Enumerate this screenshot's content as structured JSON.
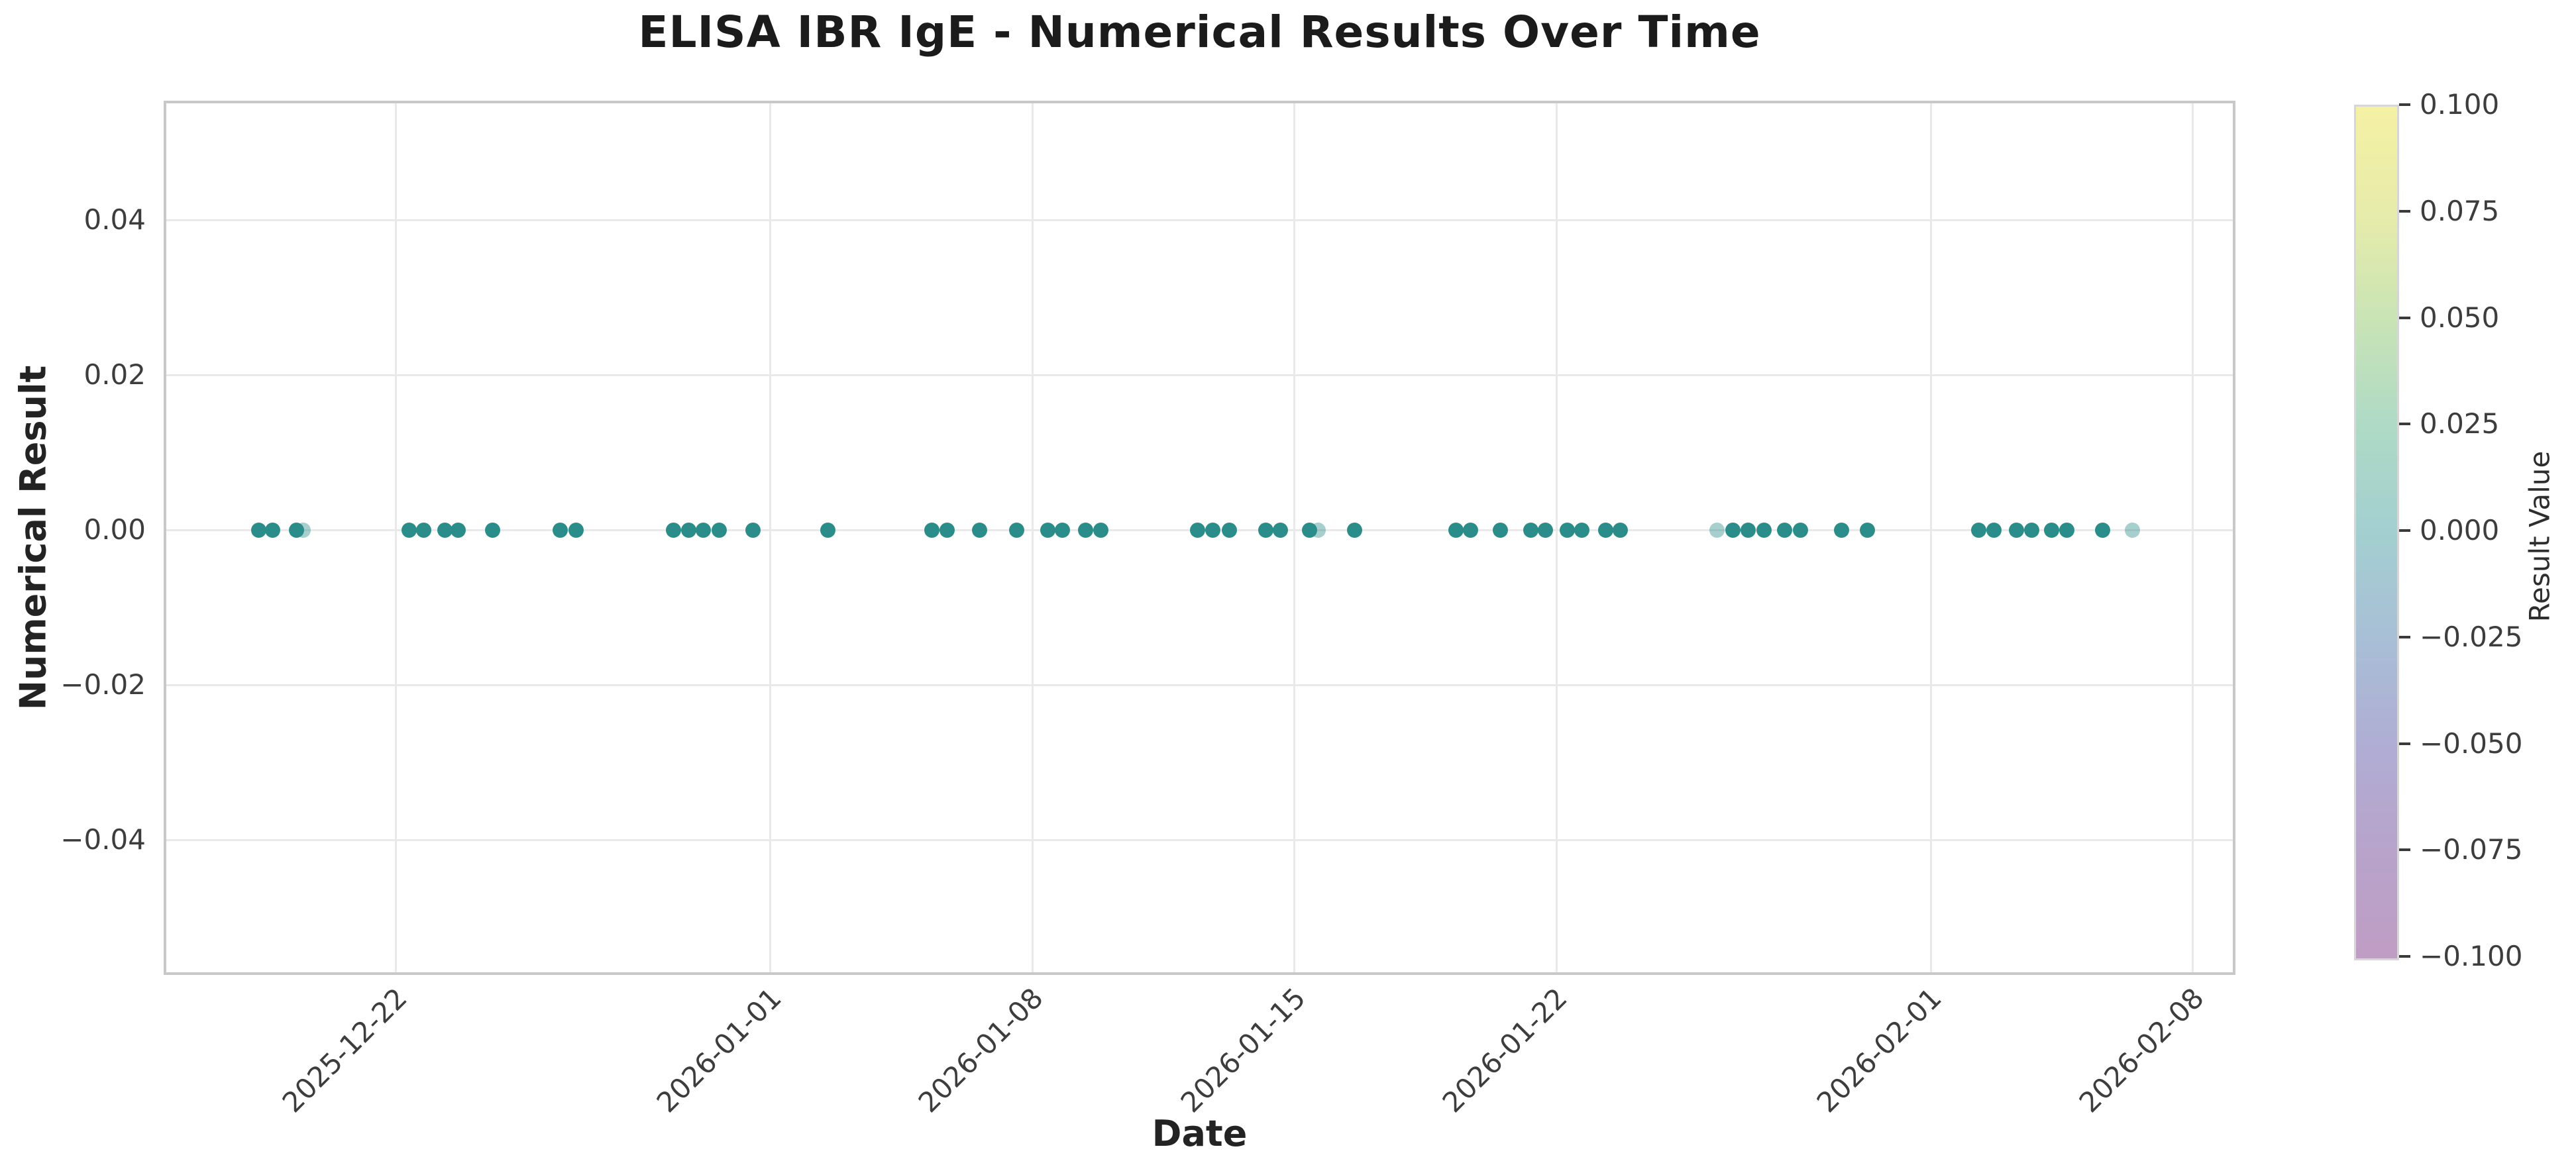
{
  "figure": {
    "background": "#ffffff"
  },
  "chart_data": {
    "type": "scatter",
    "title": "ELISA IBR IgE - Numerical Results Over Time",
    "xlabel": "Date",
    "ylabel": "Numerical Result",
    "grid": true,
    "legend": "none",
    "x_ticks": [
      {
        "label": "2025-12-22",
        "day_offset": 0
      },
      {
        "label": "2026-01-01",
        "day_offset": 10
      },
      {
        "label": "2026-01-08",
        "day_offset": 17
      },
      {
        "label": "2026-01-15",
        "day_offset": 24
      },
      {
        "label": "2026-01-22",
        "day_offset": 31
      },
      {
        "label": "2026-02-01",
        "day_offset": 41
      },
      {
        "label": "2026-02-08",
        "day_offset": 48
      }
    ],
    "x_range_days": [
      -6.1,
      49.1
    ],
    "y_ticks": [
      {
        "label": "0.04",
        "value": 0.04
      },
      {
        "label": "0.02",
        "value": 0.02
      },
      {
        "label": "0.00",
        "value": 0.0
      },
      {
        "label": "−0.02",
        "value": -0.02
      },
      {
        "label": "−0.04",
        "value": -0.04
      }
    ],
    "ylim": [
      -0.0573,
      0.0551
    ],
    "marker_color": "#2b8d8a",
    "points": [
      {
        "date": "2025-12-18",
        "day_offset": -3.65,
        "value": 0.0
      },
      {
        "date": "2025-12-18",
        "day_offset": -3.28,
        "value": 0.0
      },
      {
        "date": "2025-12-19",
        "day_offset": -2.65,
        "value": 0.0
      },
      {
        "date": "2025-12-19",
        "day_offset": -2.47,
        "value": 0.0,
        "faded": true
      },
      {
        "date": "2025-12-22",
        "day_offset": 0.37,
        "value": 0.0
      },
      {
        "date": "2025-12-22",
        "day_offset": 0.76,
        "value": 0.0
      },
      {
        "date": "2025-12-23",
        "day_offset": 1.32,
        "value": 0.0
      },
      {
        "date": "2025-12-23",
        "day_offset": 1.68,
        "value": 0.0
      },
      {
        "date": "2025-12-24",
        "day_offset": 2.6,
        "value": 0.0
      },
      {
        "date": "2025-12-26",
        "day_offset": 4.4,
        "value": 0.0
      },
      {
        "date": "2025-12-26",
        "day_offset": 4.82,
        "value": 0.0
      },
      {
        "date": "2025-12-29",
        "day_offset": 7.42,
        "value": 0.0
      },
      {
        "date": "2025-12-29",
        "day_offset": 7.84,
        "value": 0.0
      },
      {
        "date": "2025-12-30",
        "day_offset": 8.23,
        "value": 0.0
      },
      {
        "date": "2025-12-30",
        "day_offset": 8.64,
        "value": 0.0
      },
      {
        "date": "2025-12-31",
        "day_offset": 9.54,
        "value": 0.0
      },
      {
        "date": "2026-01-02",
        "day_offset": 11.55,
        "value": 0.0
      },
      {
        "date": "2026-01-05",
        "day_offset": 14.32,
        "value": 0.0
      },
      {
        "date": "2026-01-05",
        "day_offset": 14.73,
        "value": 0.0
      },
      {
        "date": "2026-01-06",
        "day_offset": 15.6,
        "value": 0.0
      },
      {
        "date": "2026-01-07",
        "day_offset": 16.6,
        "value": 0.0
      },
      {
        "date": "2026-01-08",
        "day_offset": 17.42,
        "value": 0.0
      },
      {
        "date": "2026-01-08",
        "day_offset": 17.82,
        "value": 0.0
      },
      {
        "date": "2026-01-09",
        "day_offset": 18.44,
        "value": 0.0
      },
      {
        "date": "2026-01-09",
        "day_offset": 18.84,
        "value": 0.0
      },
      {
        "date": "2026-01-12",
        "day_offset": 21.43,
        "value": 0.0
      },
      {
        "date": "2026-01-12",
        "day_offset": 21.84,
        "value": 0.0
      },
      {
        "date": "2026-01-13",
        "day_offset": 22.28,
        "value": 0.0
      },
      {
        "date": "2026-01-14",
        "day_offset": 23.24,
        "value": 0.0
      },
      {
        "date": "2026-01-14",
        "day_offset": 23.63,
        "value": 0.0
      },
      {
        "date": "2026-01-15",
        "day_offset": 24.42,
        "value": 0.0
      },
      {
        "date": "2026-01-15",
        "day_offset": 24.65,
        "value": 0.0,
        "faded": true
      },
      {
        "date": "2026-01-16",
        "day_offset": 25.62,
        "value": 0.0
      },
      {
        "date": "2026-01-19",
        "day_offset": 28.33,
        "value": 0.0
      },
      {
        "date": "2026-01-19",
        "day_offset": 28.72,
        "value": 0.0
      },
      {
        "date": "2026-01-20",
        "day_offset": 29.52,
        "value": 0.0
      },
      {
        "date": "2026-01-21",
        "day_offset": 30.33,
        "value": 0.0
      },
      {
        "date": "2026-01-21",
        "day_offset": 30.72,
        "value": 0.0
      },
      {
        "date": "2026-01-22",
        "day_offset": 31.3,
        "value": 0.0
      },
      {
        "date": "2026-01-22",
        "day_offset": 31.69,
        "value": 0.0
      },
      {
        "date": "2026-01-23",
        "day_offset": 32.33,
        "value": 0.0
      },
      {
        "date": "2026-01-23",
        "day_offset": 32.72,
        "value": 0.0
      },
      {
        "date": "2026-01-26",
        "day_offset": 35.3,
        "value": 0.0,
        "faded": true
      },
      {
        "date": "2026-01-26",
        "day_offset": 35.72,
        "value": 0.0
      },
      {
        "date": "2026-01-27",
        "day_offset": 36.13,
        "value": 0.0
      },
      {
        "date": "2026-01-27",
        "day_offset": 36.55,
        "value": 0.0
      },
      {
        "date": "2026-01-28",
        "day_offset": 37.1,
        "value": 0.0
      },
      {
        "date": "2026-01-28",
        "day_offset": 37.53,
        "value": 0.0
      },
      {
        "date": "2026-01-29",
        "day_offset": 38.63,
        "value": 0.0
      },
      {
        "date": "2026-01-30",
        "day_offset": 39.32,
        "value": 0.0
      },
      {
        "date": "2026-02-02",
        "day_offset": 42.3,
        "value": 0.0
      },
      {
        "date": "2026-02-02",
        "day_offset": 42.7,
        "value": 0.0
      },
      {
        "date": "2026-02-03",
        "day_offset": 43.3,
        "value": 0.0
      },
      {
        "date": "2026-02-03",
        "day_offset": 43.7,
        "value": 0.0
      },
      {
        "date": "2026-02-04",
        "day_offset": 44.24,
        "value": 0.0
      },
      {
        "date": "2026-02-04",
        "day_offset": 44.64,
        "value": 0.0
      },
      {
        "date": "2026-02-05",
        "day_offset": 45.6,
        "value": 0.0
      },
      {
        "date": "2026-02-06",
        "day_offset": 46.4,
        "value": 0.0,
        "faded": true
      }
    ],
    "colorbar": {
      "label": "Result Value",
      "ticks": [
        "0.100",
        "0.075",
        "0.050",
        "0.025",
        "0.000",
        "−0.025",
        "−0.050",
        "−0.075",
        "−0.100"
      ],
      "colors_top_to_bottom": [
        "#f5f1a4",
        "#e7ecaa",
        "#c9e4b5",
        "#aedac6",
        "#a3cfd0",
        "#a8bfd6",
        "#b0add4",
        "#b8a3cb",
        "#bf9dc4"
      ]
    },
    "styles": {
      "grid_color": "#e9e9e9",
      "spine_color": "#c8c8c8",
      "tick_text_color": "#3d3d3d",
      "label_text_color": "#232323",
      "title_text_color": "#1b1b1b",
      "faded_marker_opacity": 0.42
    }
  }
}
